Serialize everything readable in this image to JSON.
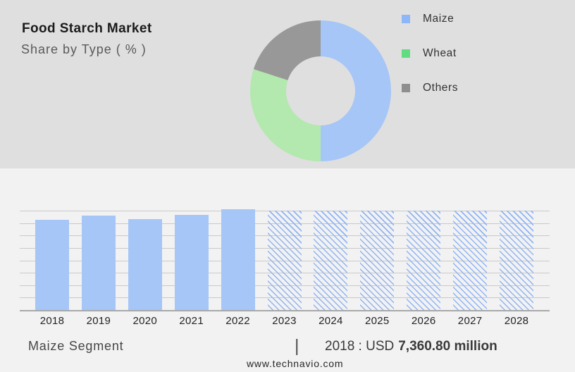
{
  "header": {
    "title": "Food Starch Market",
    "subtitle": "Share by Type ( % )"
  },
  "colors": {
    "top_bg": "#dfdfdf",
    "bottom_bg": "#f2f2f3",
    "bar_blue": "#a5c6f7",
    "hatch_line": "#8fb4f1",
    "gridline": "#c9c9c9",
    "baseline": "#a8a8a8"
  },
  "chart_data": [
    {
      "type": "pie",
      "donut": true,
      "title": "Food Starch Market — Share by Type ( % )",
      "labels": [
        "Maize",
        "Wheat",
        "Others"
      ],
      "values": [
        50,
        30,
        20
      ],
      "slice_colors": [
        "#a5c6f7",
        "#b3e8af",
        "#989898"
      ],
      "legend_colors": [
        "#8db7f8",
        "#62dc81",
        "#8e8e8e"
      ],
      "legend_position": "right"
    },
    {
      "type": "bar",
      "title": "Maize Segment — market size by year",
      "categories": [
        "2018",
        "2019",
        "2020",
        "2021",
        "2022",
        "2023",
        "2024",
        "2025",
        "2026",
        "2027",
        "2028"
      ],
      "series": [
        {
          "name": "historic (solid)",
          "values": [
            91,
            95,
            91.5,
            95.7,
            101.4,
            null,
            null,
            null,
            null,
            null,
            null
          ]
        },
        {
          "name": "forecast (hatched)",
          "values": [
            null,
            null,
            null,
            null,
            null,
            100,
            100,
            100,
            100,
            100,
            100
          ]
        }
      ],
      "xlabel": "",
      "ylabel": "",
      "y_axis_labels_shown": false,
      "grid": true,
      "note": "relative heights; forecast level = 100; 2018 value shown as USD 7,360.80 million"
    }
  ],
  "highlight": {
    "segment": "Maize Segment",
    "separator": "|",
    "stat_prefix": "2018 : USD",
    "stat_value": "7,360.80 million"
  },
  "footer": {
    "site": "www.technavio.com"
  }
}
